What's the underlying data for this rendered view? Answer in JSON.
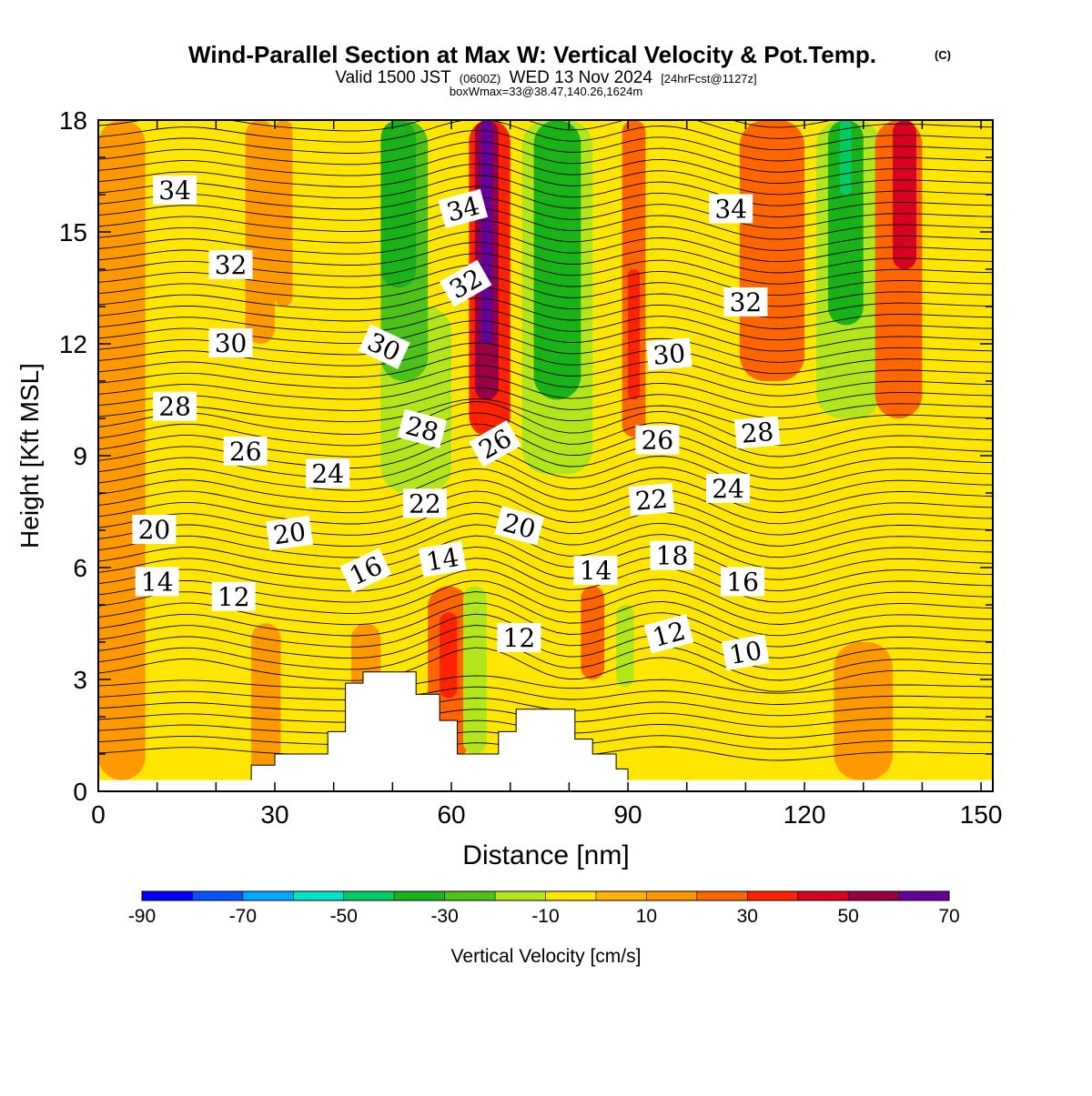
{
  "header": {
    "title": "Wind-Parallel Section at Max W: Vertical Velocity & Pot.Temp.",
    "title_mark": "(C)",
    "valid_prefix": "Valid 1500 JST",
    "valid_utc": "(0600Z)",
    "valid_date": "WED 13 Nov 2024",
    "valid_fcst": "[24hrFcst@1127z]",
    "box_info": "boxWmax=33@38.47,140.26,1624m"
  },
  "chart_data": {
    "type": "heatmap",
    "xlabel": "Distance [nm]",
    "ylabel": "Height [Kft MSL]",
    "xlim": [
      0,
      152
    ],
    "ylim": [
      0,
      18
    ],
    "x_ticks": [
      "0",
      "30",
      "60",
      "90",
      "120",
      "150"
    ],
    "y_ticks": [
      "0",
      "3",
      "6",
      "9",
      "12",
      "15",
      "18"
    ],
    "x_tick_values": [
      0,
      30,
      60,
      90,
      120,
      150
    ],
    "y_tick_values": [
      0,
      3,
      6,
      9,
      12,
      15,
      18
    ],
    "background_color": "#ffe600",
    "vertical_velocity_bands": [
      {
        "x0": 0,
        "x1": 8,
        "y0": 0.3,
        "y1": 18,
        "value": 10
      },
      {
        "x0": 25,
        "x1": 30,
        "y0": 12,
        "y1": 18,
        "value": 10
      },
      {
        "x0": 30,
        "x1": 33,
        "y0": 13,
        "y1": 18,
        "value": 15
      },
      {
        "x0": 26,
        "x1": 31,
        "y0": 0.3,
        "y1": 4.5,
        "value": 10
      },
      {
        "x0": 43,
        "x1": 48,
        "y0": 0.6,
        "y1": 4.5,
        "value": 10
      },
      {
        "x0": 46,
        "x1": 50,
        "y0": 0.5,
        "y1": 3.2,
        "value": 20
      },
      {
        "x0": 48,
        "x1": 60,
        "y0": 8,
        "y1": 13,
        "value": -15
      },
      {
        "x0": 48,
        "x1": 56,
        "y0": 11,
        "y1": 18,
        "value": -25
      },
      {
        "x0": 48,
        "x1": 54,
        "y0": 13.5,
        "y1": 18,
        "value": -35
      },
      {
        "x0": 56,
        "x1": 63,
        "y0": 0.8,
        "y1": 5.5,
        "value": 20
      },
      {
        "x0": 58,
        "x1": 61,
        "y0": 2.5,
        "y1": 4.8,
        "value": 30
      },
      {
        "x0": 62,
        "x1": 66,
        "y0": 1,
        "y1": 5.5,
        "value": -15
      },
      {
        "x0": 63,
        "x1": 70,
        "y0": 9.5,
        "y1": 18,
        "value": 30
      },
      {
        "x0": 64,
        "x1": 68,
        "y0": 10.5,
        "y1": 18,
        "value": 50
      },
      {
        "x0": 65,
        "x1": 67,
        "y0": 12,
        "y1": 18,
        "value": 70
      },
      {
        "x0": 72,
        "x1": 84,
        "y0": 8.5,
        "y1": 18,
        "value": -20
      },
      {
        "x0": 74,
        "x1": 82,
        "y0": 10.5,
        "y1": 18,
        "value": -35
      },
      {
        "x0": 82,
        "x1": 86,
        "y0": 3,
        "y1": 5.5,
        "value": 25
      },
      {
        "x0": 88,
        "x1": 91,
        "y0": 2.8,
        "y1": 5,
        "value": -15
      },
      {
        "x0": 89,
        "x1": 93,
        "y0": 9.5,
        "y1": 18,
        "value": 25
      },
      {
        "x0": 90,
        "x1": 92,
        "y0": 10.5,
        "y1": 14,
        "value": 35
      },
      {
        "x0": 109,
        "x1": 120,
        "y0": 11,
        "y1": 18,
        "value": 20
      },
      {
        "x0": 115,
        "x1": 121,
        "y0": 1.5,
        "y1": 3.8,
        "value": -10
      },
      {
        "x0": 122,
        "x1": 133,
        "y0": 10,
        "y1": 18,
        "value": -15
      },
      {
        "x0": 124,
        "x1": 130,
        "y0": 12.5,
        "y1": 18,
        "value": -35
      },
      {
        "x0": 126,
        "x1": 128,
        "y0": 16,
        "y1": 18,
        "value": -45
      },
      {
        "x0": 132,
        "x1": 140,
        "y0": 10,
        "y1": 18,
        "value": 25
      },
      {
        "x0": 135,
        "x1": 139,
        "y0": 14,
        "y1": 18,
        "value": 40
      },
      {
        "x0": 125,
        "x1": 135,
        "y0": 0.3,
        "y1": 4,
        "value": 10
      }
    ],
    "terrain": [
      [
        0,
        0
      ],
      [
        26,
        0
      ],
      [
        26,
        0.7
      ],
      [
        30,
        0.7
      ],
      [
        30,
        1
      ],
      [
        39,
        1
      ],
      [
        39,
        1.6
      ],
      [
        42,
        1.6
      ],
      [
        42,
        2.9
      ],
      [
        45,
        2.9
      ],
      [
        45,
        3.2
      ],
      [
        54,
        3.2
      ],
      [
        54,
        2.6
      ],
      [
        58,
        2.6
      ],
      [
        58,
        1.9
      ],
      [
        61,
        1.9
      ],
      [
        61,
        1
      ],
      [
        68,
        1
      ],
      [
        68,
        1.6
      ],
      [
        71,
        1.6
      ],
      [
        71,
        2.2
      ],
      [
        81,
        2.2
      ],
      [
        81,
        1.4
      ],
      [
        84,
        1.4
      ],
      [
        84,
        1
      ],
      [
        88,
        1
      ],
      [
        88,
        0.6
      ],
      [
        90,
        0.6
      ],
      [
        90,
        0
      ]
    ],
    "contour_labels": [
      {
        "text": "34",
        "x": 13,
        "y": 16.1,
        "rot": 0
      },
      {
        "text": "32",
        "x": 22.5,
        "y": 14.1,
        "rot": 0
      },
      {
        "text": "30",
        "x": 22.5,
        "y": 12.0,
        "rot": 0
      },
      {
        "text": "28",
        "x": 13,
        "y": 10.3,
        "rot": 0
      },
      {
        "text": "26",
        "x": 25,
        "y": 9.1,
        "rot": 0
      },
      {
        "text": "24",
        "x": 39,
        "y": 8.5,
        "rot": 0
      },
      {
        "text": "20",
        "x": 9.5,
        "y": 7.0,
        "rot": 0
      },
      {
        "text": "20",
        "x": 32.5,
        "y": 6.9,
        "rot": -8
      },
      {
        "text": "14",
        "x": 10,
        "y": 5.6,
        "rot": 0
      },
      {
        "text": "12",
        "x": 23,
        "y": 5.2,
        "rot": 0
      },
      {
        "text": "16",
        "x": 45.5,
        "y": 5.9,
        "rot": -25
      },
      {
        "text": "14",
        "x": 58.5,
        "y": 6.2,
        "rot": -10
      },
      {
        "text": "22",
        "x": 55.5,
        "y": 7.7,
        "rot": 0
      },
      {
        "text": "28",
        "x": 55,
        "y": 9.7,
        "rot": 15
      },
      {
        "text": "30",
        "x": 48.5,
        "y": 11.9,
        "rot": 25
      },
      {
        "text": "32",
        "x": 62.5,
        "y": 13.6,
        "rot": -30
      },
      {
        "text": "34",
        "x": 62,
        "y": 15.6,
        "rot": -15
      },
      {
        "text": "26",
        "x": 67.5,
        "y": 9.3,
        "rot": -30
      },
      {
        "text": "20",
        "x": 71.5,
        "y": 7.1,
        "rot": 15
      },
      {
        "text": "12",
        "x": 71.5,
        "y": 4.1,
        "rot": 0
      },
      {
        "text": "14",
        "x": 84.5,
        "y": 5.9,
        "rot": 0
      },
      {
        "text": "18",
        "x": 97.5,
        "y": 6.3,
        "rot": 0
      },
      {
        "text": "22",
        "x": 94,
        "y": 7.8,
        "rot": -5
      },
      {
        "text": "26",
        "x": 95,
        "y": 9.4,
        "rot": 0
      },
      {
        "text": "30",
        "x": 97,
        "y": 11.7,
        "rot": -5
      },
      {
        "text": "24",
        "x": 107,
        "y": 8.1,
        "rot": 0
      },
      {
        "text": "28",
        "x": 112,
        "y": 9.6,
        "rot": -5
      },
      {
        "text": "32",
        "x": 110,
        "y": 13.1,
        "rot": 0
      },
      {
        "text": "34",
        "x": 107.5,
        "y": 15.6,
        "rot": 0
      },
      {
        "text": "16",
        "x": 109.5,
        "y": 5.6,
        "rot": 0
      },
      {
        "text": "12",
        "x": 97,
        "y": 4.2,
        "rot": -15
      },
      {
        "text": "10",
        "x": 110,
        "y": 3.7,
        "rot": -10
      }
    ]
  },
  "colorbar": {
    "label": "Vertical Velocity [cm/s]",
    "min": -90,
    "max": 70,
    "step": 10,
    "tick_labels": [
      "-90",
      "-70",
      "-50",
      "-30",
      "-10",
      "10",
      "30",
      "50",
      "70"
    ],
    "colors": [
      "#0000ff",
      "#0055ff",
      "#00aaff",
      "#00e5c8",
      "#00cc66",
      "#19b319",
      "#4cc21a",
      "#b3e61a",
      "#ffe600",
      "#ffb300",
      "#ff9900",
      "#ff6600",
      "#ff2200",
      "#d90022",
      "#990044",
      "#660099"
    ]
  }
}
